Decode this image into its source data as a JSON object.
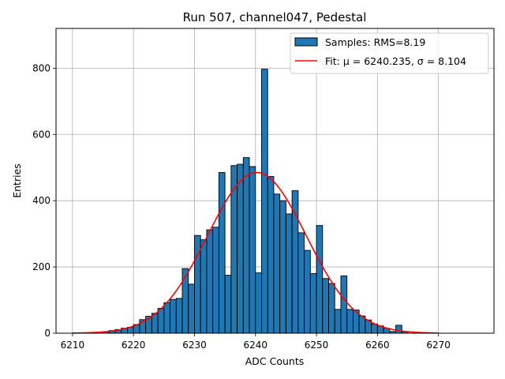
{
  "chart_data": {
    "type": "bar",
    "title": "Run 507, channel047, Pedestal",
    "xlabel": "ADC Counts",
    "ylabel": "Entries",
    "xlim": [
      6207.3,
      6279.1
    ],
    "ylim": [
      0,
      920
    ],
    "xticks": [
      6210,
      6220,
      6230,
      6240,
      6250,
      6260,
      6270
    ],
    "yticks": [
      0,
      200,
      400,
      600,
      800
    ],
    "grid": true,
    "legend_position": "top-right",
    "colors": {
      "bar_fill": "#1f77b4",
      "bar_edge": "#000000",
      "fit_line": "#ff0000",
      "grid": "#b0b0b0"
    },
    "histogram": {
      "name": "Samples: RMS=8.19",
      "bin_width": 1,
      "bin_starts": [
        6213,
        6214,
        6215,
        6216,
        6217,
        6218,
        6219,
        6220,
        6221,
        6222,
        6223,
        6224,
        6225,
        6226,
        6227,
        6228,
        6229,
        6230,
        6231,
        6232,
        6233,
        6234,
        6235,
        6236,
        6237,
        6238,
        6239,
        6240,
        6241,
        6242,
        6243,
        6244,
        6245,
        6246,
        6247,
        6248,
        6249,
        6250,
        6251,
        6252,
        6253,
        6254,
        6255,
        6256,
        6257,
        6258,
        6259,
        6260,
        6261,
        6262,
        6263,
        6264
      ],
      "counts": [
        1,
        3,
        5,
        8,
        11,
        15,
        18,
        26,
        41,
        51,
        60,
        75,
        92,
        102,
        105,
        195,
        148,
        295,
        282,
        312,
        320,
        485,
        175,
        506,
        510,
        530,
        503,
        182,
        797,
        473,
        420,
        400,
        360,
        430,
        303,
        250,
        180,
        325,
        165,
        150,
        72,
        173,
        72,
        70,
        52,
        40,
        28,
        22,
        15,
        5,
        24,
        5
      ]
    },
    "fit": {
      "name": "Fit: μ = 6240.235, σ = 8.104",
      "mu": 6240.235,
      "sigma": 8.104,
      "amplitude": 485,
      "x_range": [
        6210,
        6270
      ]
    }
  }
}
